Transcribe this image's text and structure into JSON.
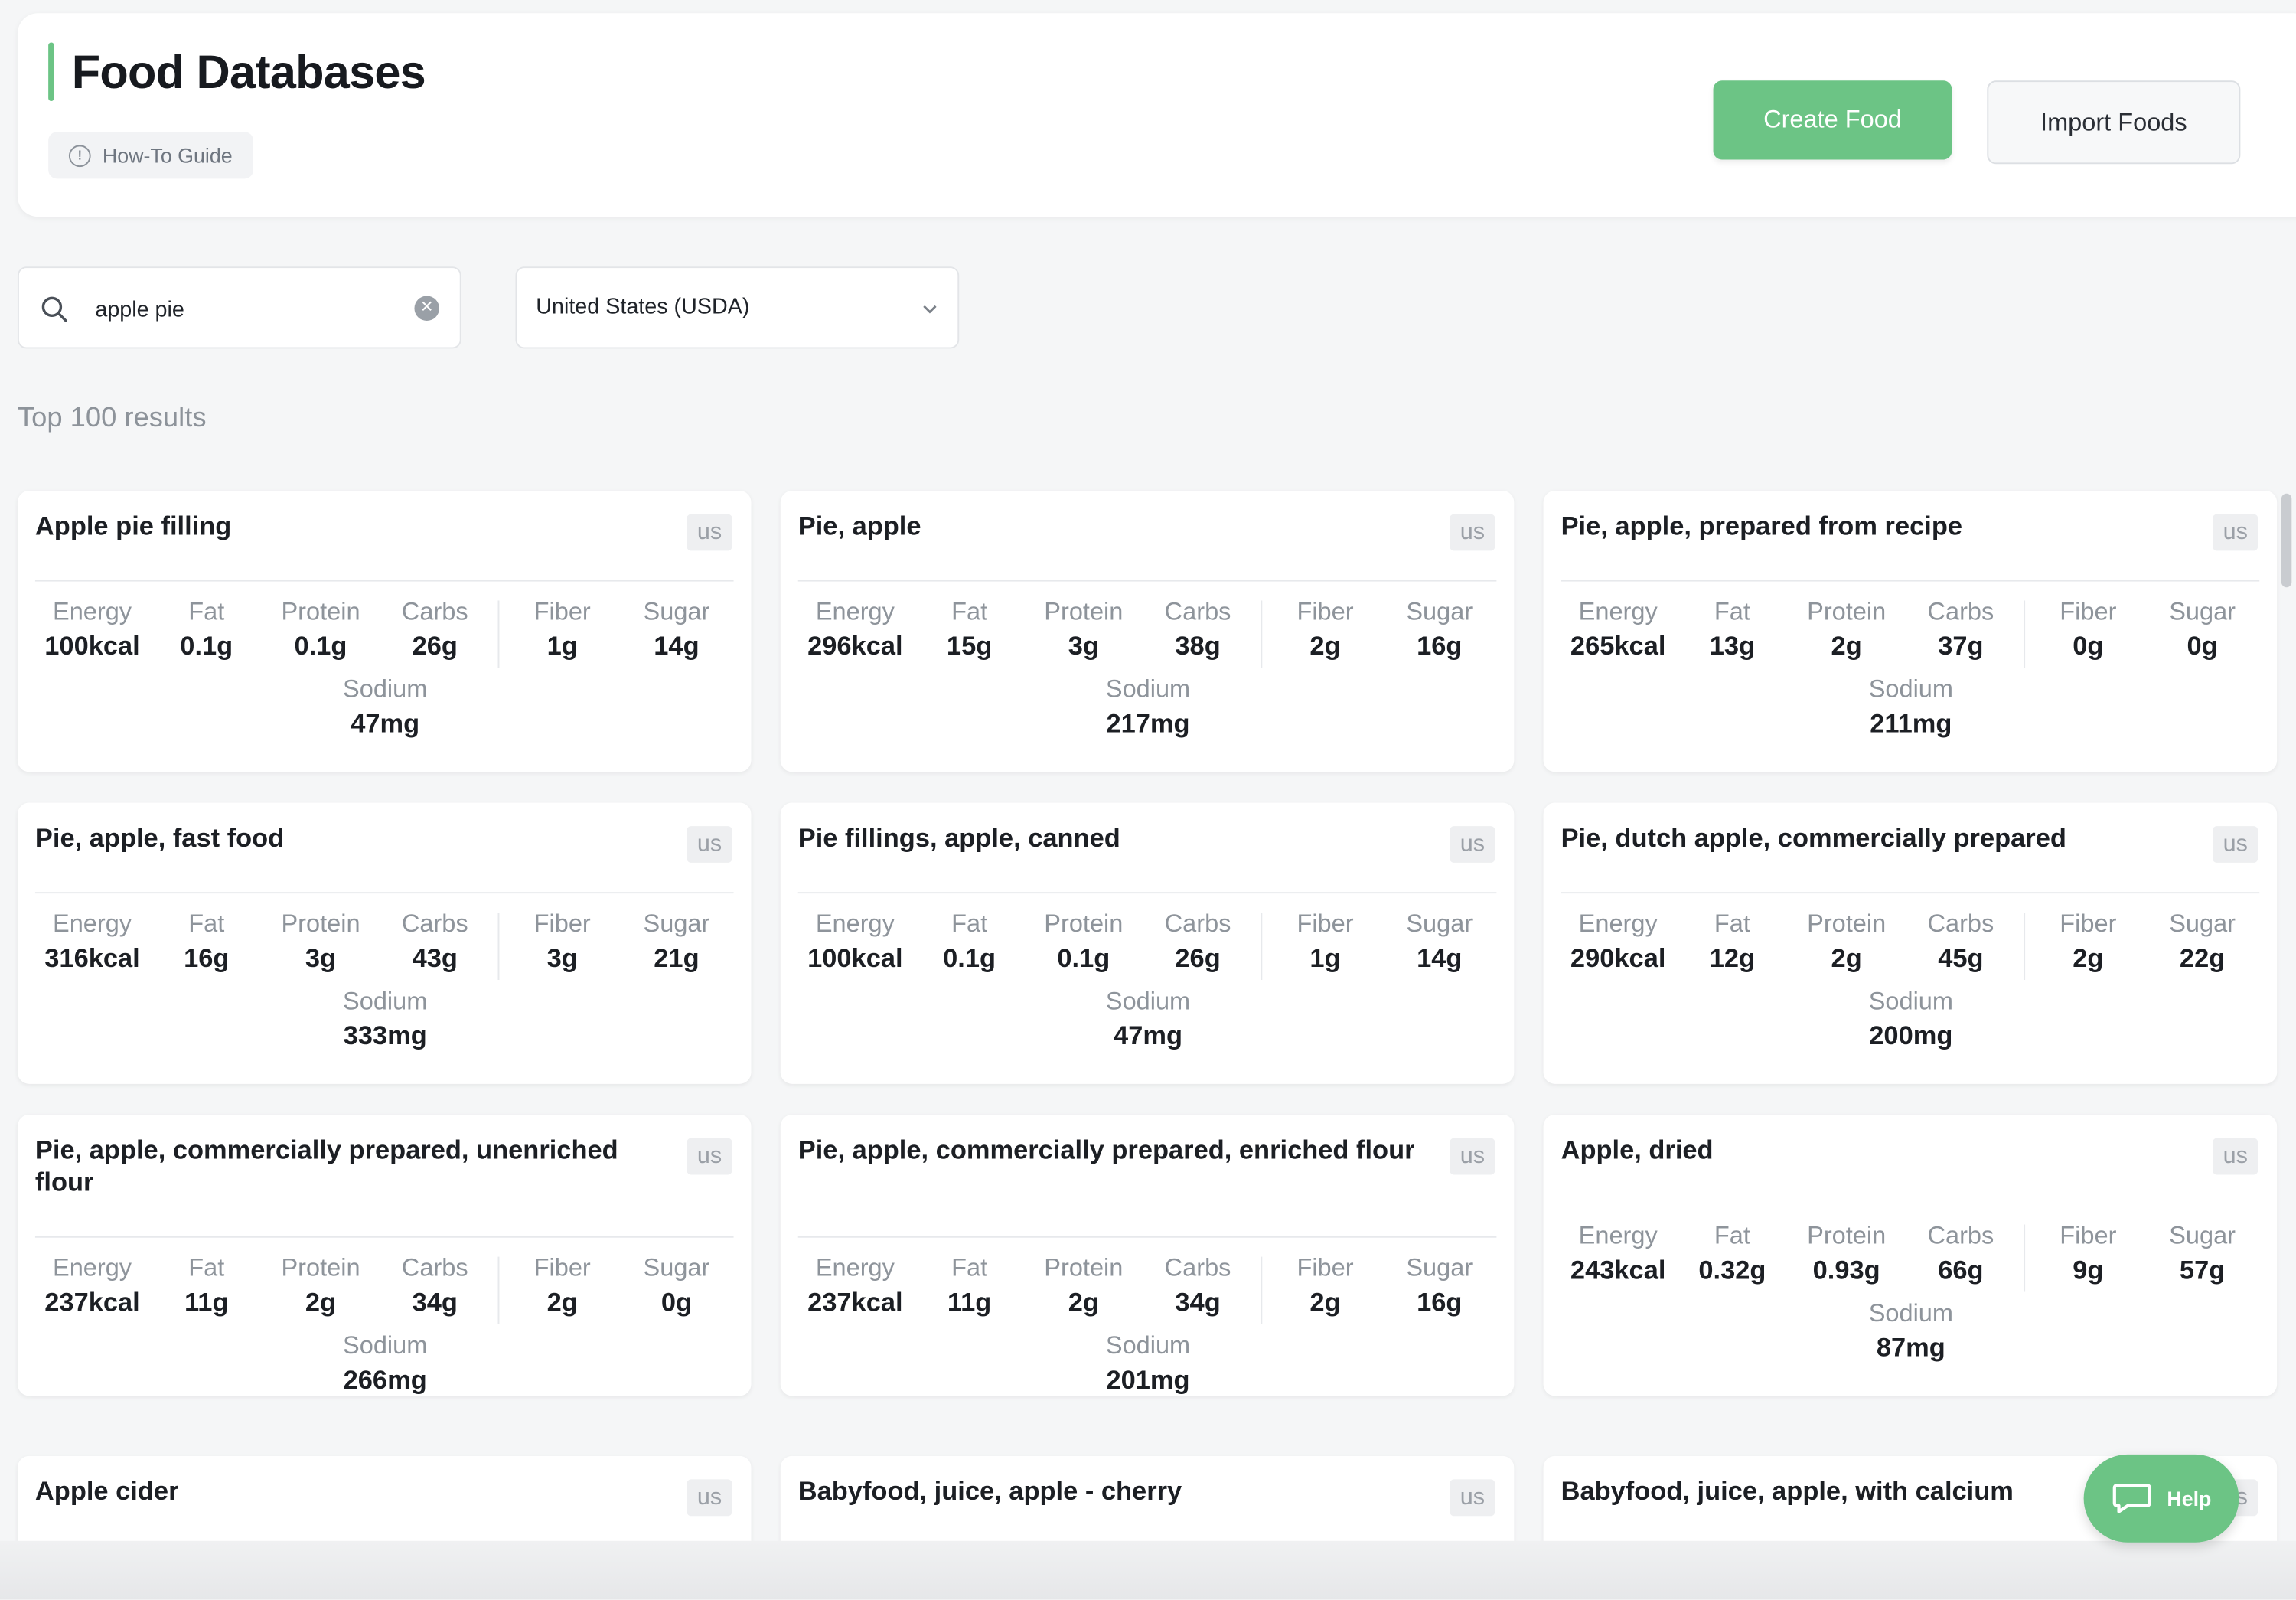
{
  "header": {
    "title": "Food Databases",
    "guide_label": "How-To Guide",
    "create_label": "Create Food",
    "import_label": "Import Foods"
  },
  "search": {
    "value": "apple pie",
    "region": "United States (USDA)"
  },
  "results_label": "Top 100 results",
  "nutrient_labels": {
    "energy": "Energy",
    "fat": "Fat",
    "protein": "Protein",
    "carbs": "Carbs",
    "fiber": "Fiber",
    "sugar": "Sugar",
    "sodium": "Sodium"
  },
  "cards": [
    {
      "name": "Apple pie filling",
      "badge": "us",
      "energy": "100kcal",
      "fat": "0.1g",
      "protein": "0.1g",
      "carbs": "26g",
      "fiber": "1g",
      "sugar": "14g",
      "sodium": "47mg"
    },
    {
      "name": "Pie, apple",
      "badge": "us",
      "energy": "296kcal",
      "fat": "15g",
      "protein": "3g",
      "carbs": "38g",
      "fiber": "2g",
      "sugar": "16g",
      "sodium": "217mg"
    },
    {
      "name": "Pie, apple, prepared from recipe",
      "badge": "us",
      "energy": "265kcal",
      "fat": "13g",
      "protein": "2g",
      "carbs": "37g",
      "fiber": "0g",
      "sugar": "0g",
      "sodium": "211mg"
    },
    {
      "name": "Pie, apple, fast food",
      "badge": "us",
      "energy": "316kcal",
      "fat": "16g",
      "protein": "3g",
      "carbs": "43g",
      "fiber": "3g",
      "sugar": "21g",
      "sodium": "333mg"
    },
    {
      "name": "Pie fillings, apple, canned",
      "badge": "us",
      "energy": "100kcal",
      "fat": "0.1g",
      "protein": "0.1g",
      "carbs": "26g",
      "fiber": "1g",
      "sugar": "14g",
      "sodium": "47mg"
    },
    {
      "name": "Pie, dutch apple, commercially prepared",
      "badge": "us",
      "energy": "290kcal",
      "fat": "12g",
      "protein": "2g",
      "carbs": "45g",
      "fiber": "2g",
      "sugar": "22g",
      "sodium": "200mg"
    },
    {
      "name": "Pie, apple, commercially prepared, unenriched flour",
      "badge": "us",
      "energy": "237kcal",
      "fat": "11g",
      "protein": "2g",
      "carbs": "34g",
      "fiber": "2g",
      "sugar": "0g",
      "sodium": "266mg"
    },
    {
      "name": "Pie, apple, commercially prepared, enriched flour",
      "badge": "us",
      "energy": "237kcal",
      "fat": "11g",
      "protein": "2g",
      "carbs": "34g",
      "fiber": "2g",
      "sugar": "16g",
      "sodium": "201mg"
    },
    {
      "name": "Apple, dried",
      "badge": "us",
      "energy": "243kcal",
      "fat": "0.32g",
      "protein": "0.93g",
      "carbs": "66g",
      "fiber": "9g",
      "sugar": "57g",
      "sodium": "87mg"
    },
    {
      "name": "Apple cider",
      "badge": "us"
    },
    {
      "name": "Babyfood, juice, apple - cherry",
      "badge": "us"
    },
    {
      "name": "Babyfood, juice, apple, with calcium",
      "badge": "us"
    }
  ],
  "help_label": "Help",
  "colors": {
    "accent": "#6cc485",
    "muted_text": "#8e949b",
    "badge_bg": "#eeeff1"
  }
}
